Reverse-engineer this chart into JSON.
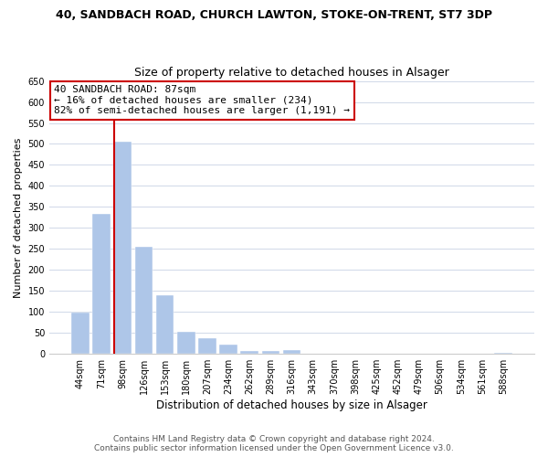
{
  "title": "40, SANDBACH ROAD, CHURCH LAWTON, STOKE-ON-TRENT, ST7 3DP",
  "subtitle": "Size of property relative to detached houses in Alsager",
  "xlabel": "Distribution of detached houses by size in Alsager",
  "ylabel": "Number of detached properties",
  "bar_labels": [
    "44sqm",
    "71sqm",
    "98sqm",
    "126sqm",
    "153sqm",
    "180sqm",
    "207sqm",
    "234sqm",
    "262sqm",
    "289sqm",
    "316sqm",
    "343sqm",
    "370sqm",
    "398sqm",
    "425sqm",
    "452sqm",
    "479sqm",
    "506sqm",
    "534sqm",
    "561sqm",
    "588sqm"
  ],
  "bar_values": [
    98,
    333,
    505,
    255,
    140,
    53,
    38,
    22,
    7,
    7,
    10,
    0,
    0,
    0,
    0,
    0,
    0,
    0,
    0,
    0,
    3
  ],
  "bar_color": "#aec6e8",
  "ylim": [
    0,
    650
  ],
  "yticks": [
    0,
    50,
    100,
    150,
    200,
    250,
    300,
    350,
    400,
    450,
    500,
    550,
    600,
    650
  ],
  "property_line_label": "40 SANDBACH ROAD: 87sqm",
  "annotation_line1": "← 16% of detached houses are smaller (234)",
  "annotation_line2": "82% of semi-detached houses are larger (1,191) →",
  "annotation_box_color": "#ffffff",
  "annotation_box_edgecolor": "#cc0000",
  "footer_line1": "Contains HM Land Registry data © Crown copyright and database right 2024.",
  "footer_line2": "Contains public sector information licensed under the Open Government Licence v3.0.",
  "bg_color": "#ffffff",
  "grid_color": "#d0d8e8",
  "bar_edge_color": "#ffffff",
  "vline_color": "#cc0000",
  "title_fontsize": 9,
  "subtitle_fontsize": 9,
  "xlabel_fontsize": 8.5,
  "ylabel_fontsize": 8,
  "tick_fontsize": 7,
  "footer_fontsize": 6.5,
  "annotation_fontsize": 8
}
